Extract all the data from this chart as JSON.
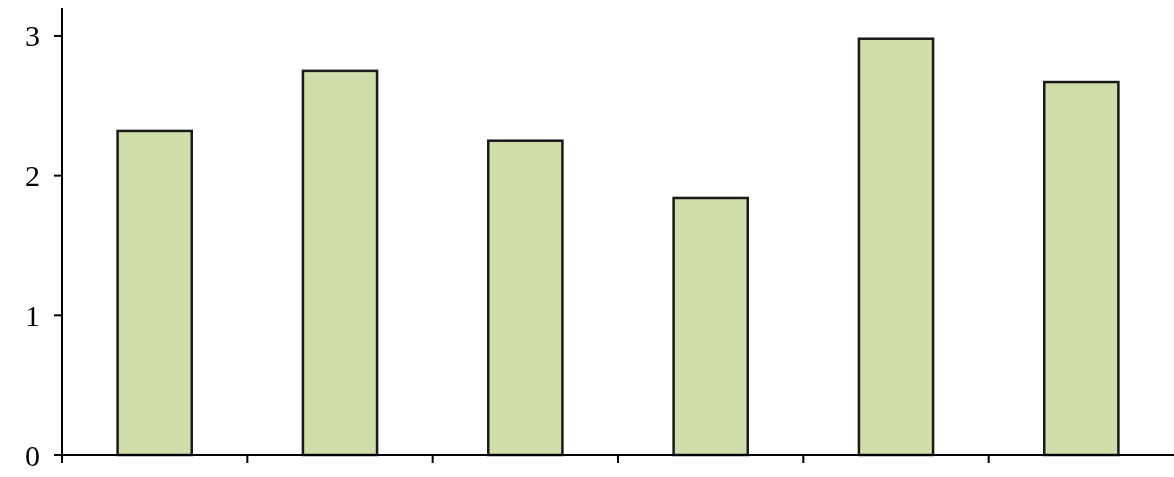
{
  "chart_data": {
    "type": "bar",
    "categories": [
      null,
      null,
      null,
      null,
      null,
      null
    ],
    "values": [
      2.32,
      2.75,
      2.25,
      1.84,
      2.98,
      2.67
    ],
    "color": "#cfdeab",
    "ylim": [
      0,
      3.2
    ],
    "yticks": [
      0,
      1,
      2,
      3
    ]
  }
}
